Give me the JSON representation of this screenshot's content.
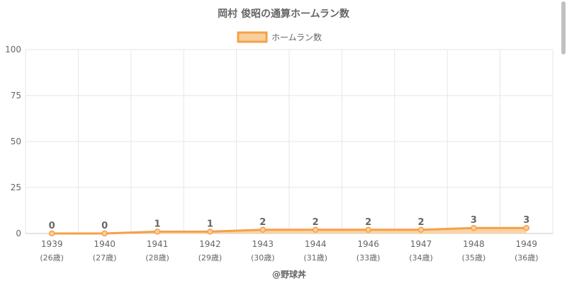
{
  "chart_data": {
    "type": "area",
    "title": "岡村 俊昭の通算ホームラン数",
    "categories": [
      "1939",
      "1940",
      "1941",
      "1942",
      "1943",
      "1944",
      "1946",
      "1947",
      "1948",
      "1949"
    ],
    "sublabels": [
      "(26歳)",
      "(27歳)",
      "(28歳)",
      "(29歳)",
      "(30歳)",
      "(31歳)",
      "(33歳)",
      "(34歳)",
      "(35歳)",
      "(36歳)"
    ],
    "series": [
      {
        "name": "ホームラン数",
        "values": [
          0,
          0,
          1,
          1,
          2,
          2,
          2,
          2,
          3,
          3
        ]
      }
    ],
    "ylim": [
      0,
      100
    ],
    "yticks": [
      0,
      25,
      50,
      75,
      100
    ],
    "grid": true,
    "legend_position": "top",
    "colors": {
      "line": "#f5a047",
      "fill": "#fbcf9c",
      "grid": "#e6e6e6",
      "axis": "#c8c8c8"
    },
    "credit": "@野球丼"
  }
}
